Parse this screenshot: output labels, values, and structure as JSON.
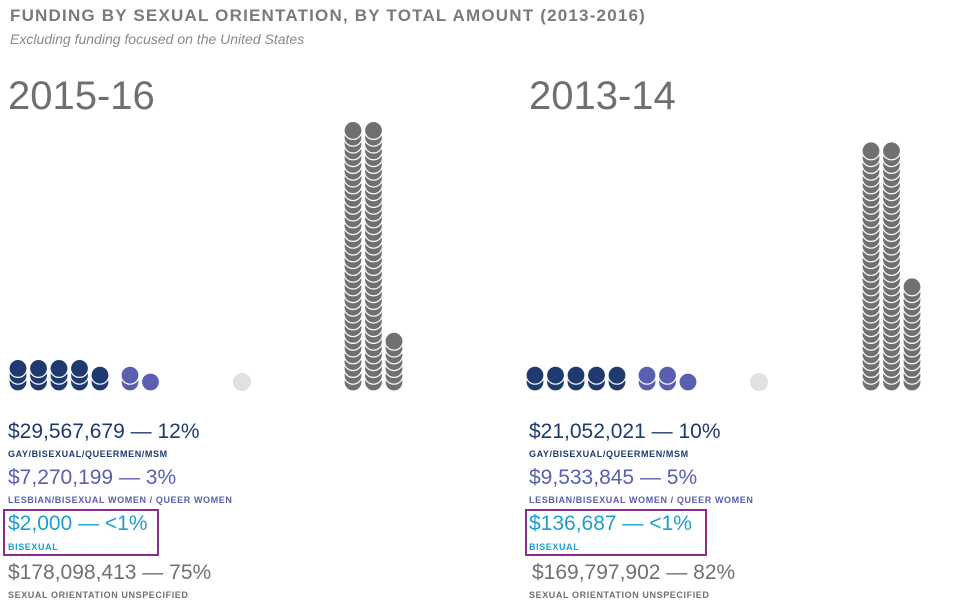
{
  "title": "FUNDING BY SEXUAL ORIENTATION, BY TOTAL AMOUNT (2013-2016)",
  "subtitle": "Excluding funding focused on the United States",
  "colors": {
    "gay": "#1f3a6e",
    "lesbian": "#5a5fb0",
    "bisexual": "#1a9ed3",
    "unspecified": "#707070",
    "empty": "#e1e1e1",
    "highlight": "#8b2d8f"
  },
  "chart_data": [
    {
      "type": "pictograph",
      "title": "2015-16",
      "series": [
        {
          "name": "GAY/BISEXUAL/QUEERMEN/MSM",
          "amount": "$29,567,679",
          "percent_label": "12%",
          "value": 29567679,
          "percent": 12
        },
        {
          "name": "LESBIAN/BISEXUAL WOMEN / QUEER WOMEN",
          "amount": "$7,270,199",
          "percent_label": "3%",
          "value": 7270199,
          "percent": 3
        },
        {
          "name": "BISEXUAL",
          "amount": "$2,000",
          "percent_label": "<1%",
          "value": 2000,
          "percent": 0.001
        },
        {
          "name": "SEXUAL ORIENTATION UNSPECIFIED",
          "amount": "$178,098,413",
          "percent_label": "75%",
          "value": 178098413,
          "percent": 75
        }
      ]
    },
    {
      "type": "pictograph",
      "title": "2013-14",
      "series": [
        {
          "name": "GAY/BISEXUAL/QUEERMEN/MSM",
          "amount": "$21,052,021",
          "percent_label": "10%",
          "value": 21052021,
          "percent": 10
        },
        {
          "name": "LESBIAN/BISEXUAL WOMEN / QUEER WOMEN",
          "amount": "$9,533,845",
          "percent_label": "5%",
          "value": 9533845,
          "percent": 5
        },
        {
          "name": "BISEXUAL",
          "amount": "$136,687",
          "percent_label": "<1%",
          "value": 136687,
          "percent": 0.06
        },
        {
          "name": "SEXUAL ORIENTATION UNSPECIFIED",
          "amount": "$169,797,902",
          "percent_label": "82%",
          "value": 169797902,
          "percent": 82
        }
      ]
    }
  ]
}
